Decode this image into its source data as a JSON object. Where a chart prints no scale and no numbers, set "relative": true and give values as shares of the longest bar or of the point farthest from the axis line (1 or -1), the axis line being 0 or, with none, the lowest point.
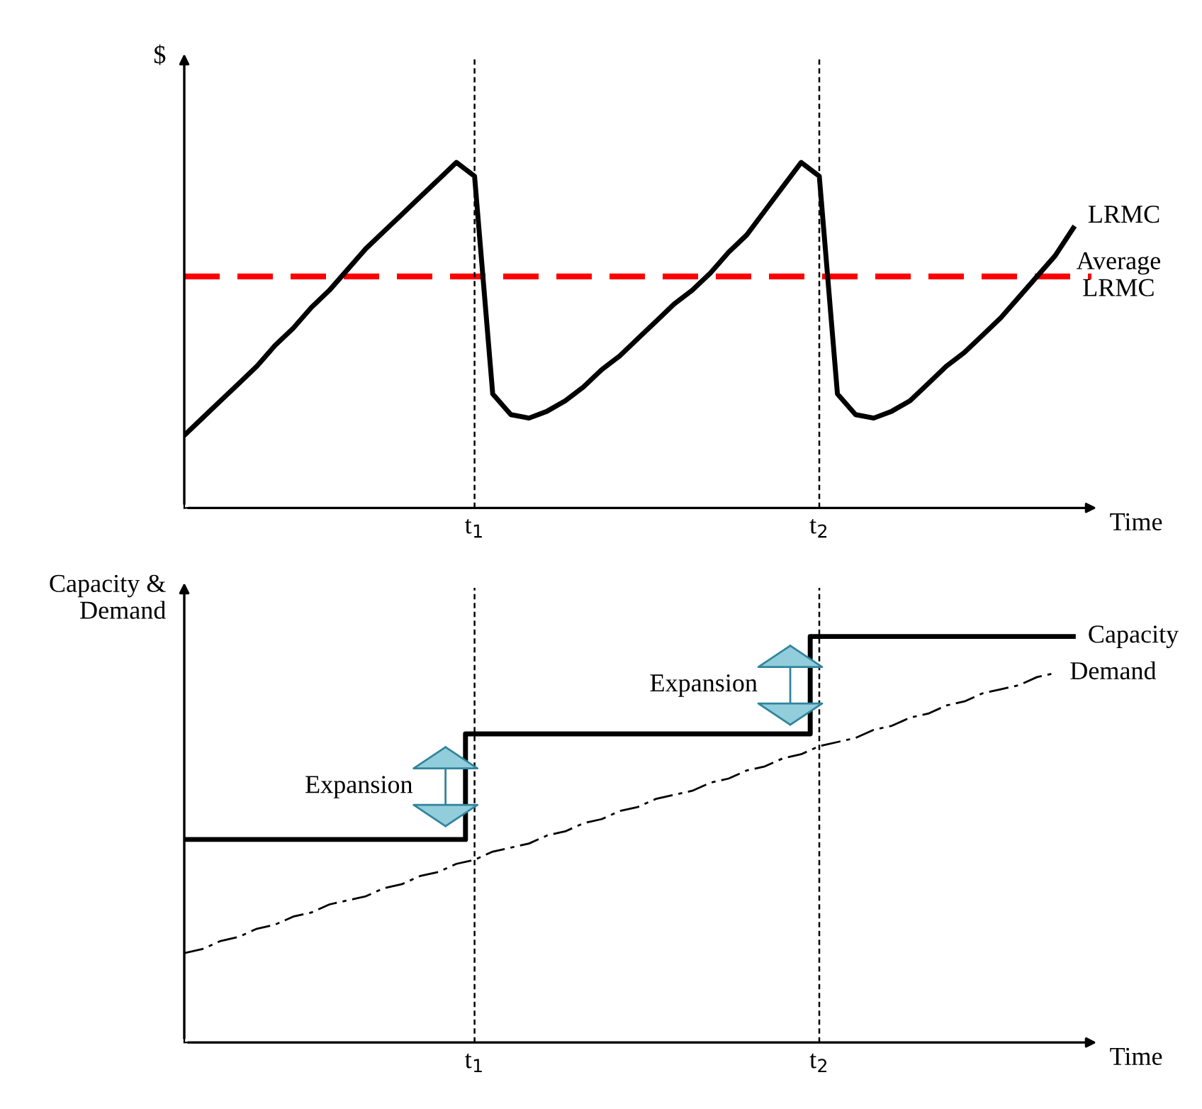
{
  "chart_data": [
    {
      "type": "line",
      "relative": true,
      "ylabel": "$",
      "xlabel": "Time",
      "categories": [
        null,
        null,
        null,
        null,
        null,
        null,
        null,
        null,
        null,
        null,
        null,
        null,
        null,
        null,
        null,
        null,
        "t$_{1}$",
        null,
        null,
        null,
        null,
        null,
        null,
        null,
        null,
        null,
        null,
        null,
        null,
        null,
        null,
        null,
        null,
        null,
        null,
        "t$_{2}$",
        null,
        null,
        null,
        null,
        null,
        null,
        null,
        null,
        null,
        null,
        null,
        null,
        null,
        null
      ],
      "series": [
        {
          "name": "LRMC",
          "color": "#000000",
          "values": [
            0.21,
            0.26,
            0.31,
            0.36,
            0.41,
            0.47,
            0.52,
            0.58,
            0.63,
            0.69,
            0.75,
            0.8,
            0.85,
            0.9,
            0.95,
            1.0,
            0.96,
            0.33,
            0.27,
            0.26,
            0.28,
            0.31,
            0.35,
            0.4,
            0.44,
            0.49,
            0.54,
            0.59,
            0.63,
            0.68,
            0.74,
            0.79,
            0.86,
            0.93,
            1.0,
            0.96,
            0.33,
            0.27,
            0.26,
            0.28,
            0.31,
            0.36,
            0.41,
            0.45,
            0.5,
            0.55,
            0.61,
            0.67,
            0.73,
            0.81
          ]
        }
      ],
      "ref_lines": [
        {
          "axis": "y",
          "value": 0.67,
          "label": "Average\nLRMC",
          "color": "#ff0000",
          "line_style": "dashed"
        },
        {
          "axis": "x",
          "value": "t$_{1}$",
          "color": "#000000",
          "line_style": "dotted"
        },
        {
          "axis": "x",
          "value": "t$_{2}$",
          "color": "#000000",
          "line_style": "dotted"
        }
      ]
    },
    {
      "type": "line",
      "relative": true,
      "ylabel": "Capacity &\nDemand",
      "xlabel": "Time",
      "categories": [
        null,
        null,
        null,
        null,
        null,
        null,
        null,
        null,
        null,
        null,
        null,
        null,
        null,
        null,
        null,
        null,
        "t$_{1}$",
        null,
        null,
        null,
        null,
        null,
        null,
        null,
        null,
        null,
        null,
        null,
        null,
        null,
        null,
        null,
        null,
        null,
        null,
        "t$_{2}$",
        null,
        null,
        null,
        null,
        null,
        null,
        null,
        null,
        null,
        null,
        null,
        null,
        null,
        null
      ],
      "series": [
        {
          "name": "Capacity",
          "type": "step",
          "color": "#000000",
          "values": [
            0.5,
            0.5,
            0.5,
            0.5,
            0.5,
            0.5,
            0.5,
            0.5,
            0.5,
            0.5,
            0.5,
            0.5,
            0.5,
            0.5,
            0.5,
            0.5,
            0.76,
            0.76,
            0.76,
            0.76,
            0.76,
            0.76,
            0.76,
            0.76,
            0.76,
            0.76,
            0.76,
            0.76,
            0.76,
            0.76,
            0.76,
            0.76,
            0.76,
            0.76,
            0.76,
            1.0,
            1.0,
            1.0,
            1.0,
            1.0,
            1.0,
            1.0,
            1.0,
            1.0,
            1.0,
            1.0,
            1.0,
            1.0,
            1.0,
            1.0
          ]
        },
        {
          "name": "Demand",
          "type": "line",
          "line_style": "dashed",
          "color": "#000000",
          "values": [
            0.22,
            0.23,
            0.25,
            0.26,
            0.28,
            0.29,
            0.31,
            0.32,
            0.34,
            0.35,
            0.36,
            0.38,
            0.39,
            0.41,
            0.42,
            0.44,
            0.45,
            0.47,
            0.48,
            0.49,
            0.51,
            0.52,
            0.54,
            0.55,
            0.57,
            0.58,
            0.6,
            0.61,
            0.62,
            0.64,
            0.65,
            0.67,
            0.68,
            0.7,
            0.71,
            0.73,
            0.74,
            0.75,
            0.77,
            0.78,
            0.8,
            0.81,
            0.83,
            0.84,
            0.86,
            0.87,
            0.88,
            0.9,
            0.91,
            null
          ]
        }
      ],
      "ref_lines": [
        {
          "axis": "x",
          "value": "t$_{1}$",
          "color": "#000000",
          "line_style": "dotted"
        },
        {
          "axis": "x",
          "value": "t$_{2}$",
          "color": "#000000",
          "line_style": "dotted"
        }
      ],
      "annotations": [
        {
          "text": "Expansion",
          "x": "t$_{1}$",
          "y": 0.63
        },
        {
          "text": "Expansion",
          "x": "t$_{2}$",
          "y": 0.88
        }
      ]
    }
  ]
}
